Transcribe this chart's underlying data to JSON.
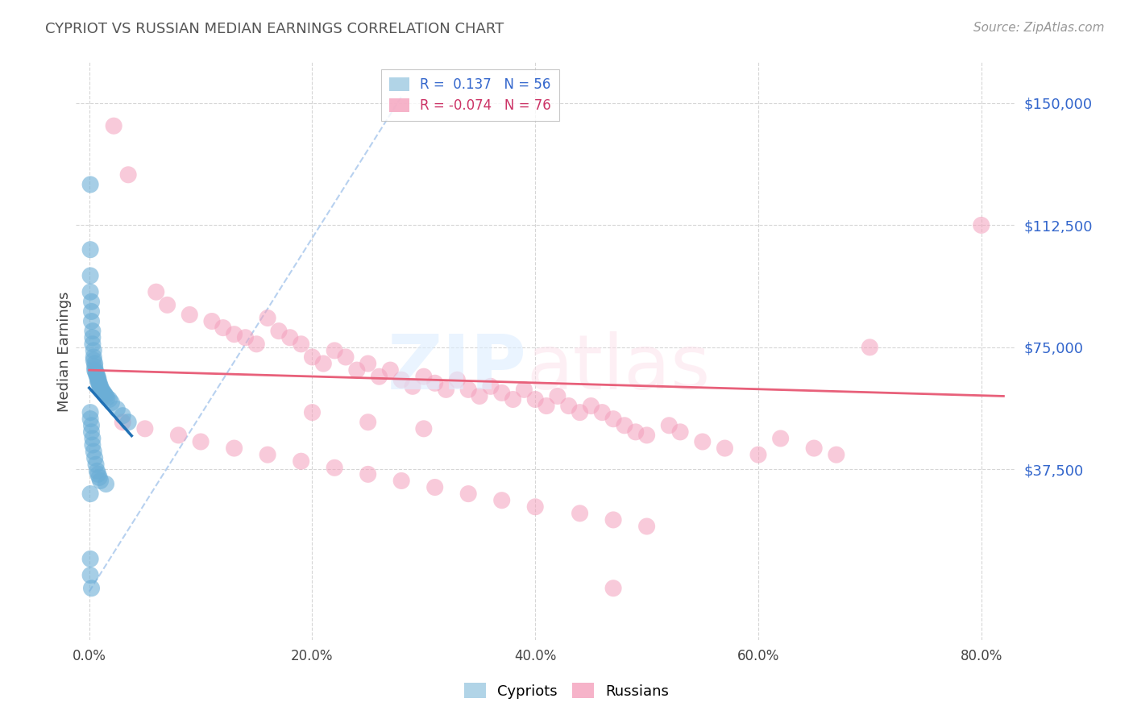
{
  "title": "CYPRIOT VS RUSSIAN MEDIAN EARNINGS CORRELATION CHART",
  "source": "Source: ZipAtlas.com",
  "ylabel": "Median Earnings",
  "cypriot_color": "#6baed6",
  "russian_color": "#f4a0bc",
  "trend_cypriot_color": "#2171b5",
  "trend_russian_color": "#e8607a",
  "diagonal_color": "#b8d4ee",
  "background_color": "#ffffff",
  "ytick_labels": [
    "$37,500",
    "$75,000",
    "$112,500",
    "$150,000"
  ],
  "ytick_values": [
    37500,
    75000,
    112500,
    150000
  ],
  "ymax": 162500,
  "ymin": -15000,
  "xmax": 0.83,
  "xmin": -0.012,
  "xtick_labels": [
    "0.0%",
    "20.0%",
    "40.0%",
    "60.0%",
    "80.0%"
  ],
  "xtick_values": [
    0.0,
    0.2,
    0.4,
    0.6,
    0.8
  ],
  "cypriot_x": [
    0.001,
    0.001,
    0.001,
    0.001,
    0.002,
    0.002,
    0.002,
    0.003,
    0.003,
    0.003,
    0.004,
    0.004,
    0.004,
    0.005,
    0.005,
    0.005,
    0.006,
    0.006,
    0.007,
    0.007,
    0.008,
    0.008,
    0.008,
    0.009,
    0.009,
    0.01,
    0.01,
    0.011,
    0.012,
    0.013,
    0.014,
    0.015,
    0.016,
    0.018,
    0.02,
    0.025,
    0.03,
    0.035,
    0.001,
    0.001,
    0.002,
    0.002,
    0.003,
    0.003,
    0.004,
    0.005,
    0.006,
    0.007,
    0.008,
    0.009,
    0.01,
    0.015,
    0.001,
    0.001,
    0.001,
    0.002
  ],
  "cypriot_y": [
    125000,
    105000,
    97000,
    92000,
    89000,
    86000,
    83000,
    80000,
    78000,
    76000,
    74000,
    72000,
    71000,
    70000,
    69000,
    68000,
    67500,
    67000,
    66500,
    66000,
    65500,
    65000,
    64500,
    64000,
    63500,
    63000,
    62500,
    62000,
    61500,
    61000,
    60500,
    60000,
    59500,
    59000,
    58000,
    56000,
    54000,
    52000,
    55000,
    53000,
    51000,
    49000,
    47000,
    45000,
    43000,
    41000,
    39000,
    37000,
    36000,
    35000,
    34000,
    33000,
    30000,
    10000,
    5000,
    1000
  ],
  "russian_x": [
    0.022,
    0.035,
    0.06,
    0.07,
    0.09,
    0.11,
    0.12,
    0.13,
    0.14,
    0.15,
    0.16,
    0.17,
    0.18,
    0.19,
    0.2,
    0.21,
    0.22,
    0.23,
    0.24,
    0.25,
    0.26,
    0.27,
    0.28,
    0.29,
    0.3,
    0.31,
    0.32,
    0.33,
    0.34,
    0.35,
    0.36,
    0.37,
    0.38,
    0.39,
    0.4,
    0.41,
    0.42,
    0.43,
    0.44,
    0.45,
    0.46,
    0.47,
    0.48,
    0.49,
    0.5,
    0.52,
    0.53,
    0.55,
    0.57,
    0.6,
    0.62,
    0.65,
    0.67,
    0.7,
    0.03,
    0.05,
    0.08,
    0.1,
    0.13,
    0.16,
    0.19,
    0.22,
    0.25,
    0.28,
    0.31,
    0.34,
    0.37,
    0.4,
    0.44,
    0.47,
    0.5,
    0.2,
    0.25,
    0.3,
    0.47,
    0.8
  ],
  "russian_y": [
    143000,
    128000,
    92000,
    88000,
    85000,
    83000,
    81000,
    79000,
    78000,
    76000,
    84000,
    80000,
    78000,
    76000,
    72000,
    70000,
    74000,
    72000,
    68000,
    70000,
    66000,
    68000,
    65000,
    63000,
    66000,
    64000,
    62000,
    65000,
    62000,
    60000,
    63000,
    61000,
    59000,
    62000,
    59000,
    57000,
    60000,
    57000,
    55000,
    57000,
    55000,
    53000,
    51000,
    49000,
    48000,
    51000,
    49000,
    46000,
    44000,
    42000,
    47000,
    44000,
    42000,
    75000,
    52000,
    50000,
    48000,
    46000,
    44000,
    42000,
    40000,
    38000,
    36000,
    34000,
    32000,
    30000,
    28000,
    26000,
    24000,
    22000,
    20000,
    55000,
    52000,
    50000,
    1000,
    112500
  ]
}
